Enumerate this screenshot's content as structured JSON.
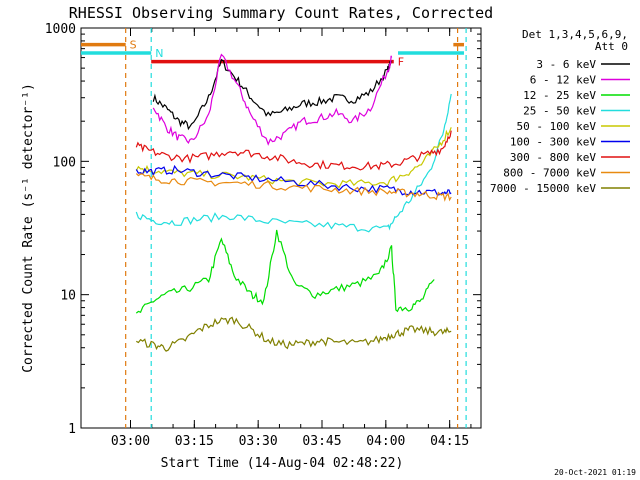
{
  "chart_data": {
    "type": "line",
    "title": "RHESSI Observing Summary Count Rates, Corrected",
    "xlabel": "Start Time (14-Aug-04 02:48:22)",
    "ylabel": "Corrected Count Rate (s⁻¹ detector⁻¹)",
    "x_unit": "minutes after 02:48:22",
    "xlim": [
      0,
      94
    ],
    "ylim": [
      1,
      1000
    ],
    "yscale": "log",
    "x_ticks": [
      "03:00",
      "03:15",
      "03:30",
      "03:45",
      "04:00",
      "04:15"
    ],
    "y_ticks": [
      "1",
      "10",
      "100",
      "1000"
    ],
    "legend_title": [
      "Det 1,3,4,5,6,9,",
      "Att 0"
    ],
    "legend_position": "right",
    "footer": "20-Oct-2021 01:19",
    "flags": [
      {
        "label": "S",
        "color": "#e07a10",
        "spans": [
          [
            0,
            10.5
          ],
          [
            87.5,
            90
          ]
        ],
        "level": 750
      },
      {
        "label": "N",
        "color": "#22dddd",
        "spans": [
          [
            0,
            16.5
          ],
          [
            74.5,
            90
          ]
        ],
        "level": 650
      },
      {
        "label": "F",
        "color": "#e01010",
        "spans": [
          [
            16.5,
            73.5
          ]
        ],
        "level": 560
      }
    ],
    "vlines": [
      {
        "x": 10.5,
        "color": "#e07a10",
        "dashed": true
      },
      {
        "x": 16.5,
        "color": "#22dddd",
        "dashed": true
      },
      {
        "x": 88.5,
        "color": "#e07a10",
        "dashed": true
      },
      {
        "x": 90.5,
        "color": "#22dddd",
        "dashed": true
      }
    ],
    "series": [
      {
        "name": "3 - 6 keV",
        "color": "#000000",
        "x": [
          17,
          20,
          23,
          26,
          30,
          33,
          37,
          40,
          44,
          48,
          52,
          56,
          60,
          64,
          68,
          72,
          73
        ],
        "y": [
          300,
          250,
          200,
          180,
          300,
          560,
          400,
          300,
          220,
          240,
          270,
          280,
          300,
          290,
          330,
          480,
          560
        ]
      },
      {
        "name": "6 - 12 keV",
        "color": "#dd00dd",
        "x": [
          17,
          20,
          23,
          26,
          30,
          33,
          37,
          40,
          44,
          48,
          52,
          56,
          60,
          64,
          68,
          72,
          73
        ],
        "y": [
          260,
          180,
          150,
          140,
          220,
          620,
          360,
          220,
          140,
          160,
          200,
          210,
          230,
          200,
          250,
          480,
          600
        ]
      },
      {
        "name": "12 - 25 keV",
        "color": "#00dd00",
        "x": [
          13,
          17,
          20,
          25,
          30,
          33,
          36,
          40,
          43,
          46,
          50,
          55,
          60,
          65,
          70,
          73,
          74,
          77,
          80,
          83
        ],
        "y": [
          7,
          9,
          10,
          11,
          13,
          26,
          14,
          10,
          9,
          30,
          12,
          10,
          11,
          12,
          14,
          22,
          8,
          8,
          9,
          13
        ]
      },
      {
        "name": "25 - 50 keV",
        "color": "#22dddd",
        "x": [
          13,
          17,
          22,
          28,
          35,
          42,
          50,
          58,
          65,
          72,
          74,
          78,
          82,
          85,
          87
        ],
        "y": [
          40,
          36,
          35,
          37,
          39,
          36,
          34,
          33,
          32,
          31,
          38,
          55,
          85,
          160,
          320
        ]
      },
      {
        "name": "50 - 100 keV",
        "color": "#c8c800",
        "x": [
          13,
          17,
          22,
          28,
          35,
          42,
          50,
          58,
          65,
          72,
          76,
          80,
          84,
          87
        ],
        "y": [
          90,
          86,
          82,
          80,
          78,
          74,
          70,
          68,
          68,
          70,
          80,
          95,
          130,
          180
        ]
      },
      {
        "name": "100 - 300 keV",
        "color": "#0000ee",
        "x": [
          13,
          17,
          22,
          28,
          35,
          42,
          50,
          58,
          65,
          72,
          76,
          80,
          85,
          87
        ],
        "y": [
          85,
          84,
          86,
          82,
          78,
          74,
          70,
          66,
          63,
          62,
          60,
          59,
          58,
          58
        ]
      },
      {
        "name": "300 - 800 keV",
        "color": "#e01010",
        "x": [
          13,
          16,
          20,
          25,
          30,
          35,
          40,
          45,
          50,
          55,
          60,
          65,
          70,
          74,
          78,
          82,
          85,
          87
        ],
        "y": [
          130,
          120,
          110,
          105,
          110,
          120,
          115,
          108,
          100,
          95,
          93,
          92,
          92,
          96,
          105,
          115,
          125,
          170
        ]
      },
      {
        "name": "800 - 7000 keV",
        "color": "#e88a10",
        "x": [
          13,
          17,
          22,
          28,
          35,
          42,
          50,
          58,
          65,
          72,
          76,
          80,
          84,
          87
        ],
        "y": [
          78,
          74,
          72,
          70,
          69,
          67,
          64,
          62,
          60,
          59,
          58,
          57,
          55,
          54
        ]
      },
      {
        "name": "7000 - 15000 keV",
        "color": "#808000",
        "x": [
          13,
          17,
          20,
          24,
          28,
          32,
          36,
          40,
          44,
          48,
          52,
          56,
          60,
          65,
          70,
          73,
          75,
          78,
          82,
          85,
          87
        ],
        "y": [
          4.5,
          4.2,
          4.0,
          4.5,
          5.5,
          6.3,
          6.5,
          5.5,
          4.5,
          4.2,
          4.3,
          4.5,
          4.4,
          4.3,
          4.6,
          5.0,
          5.2,
          5.5,
          5.3,
          5.2,
          5.3
        ]
      }
    ]
  }
}
